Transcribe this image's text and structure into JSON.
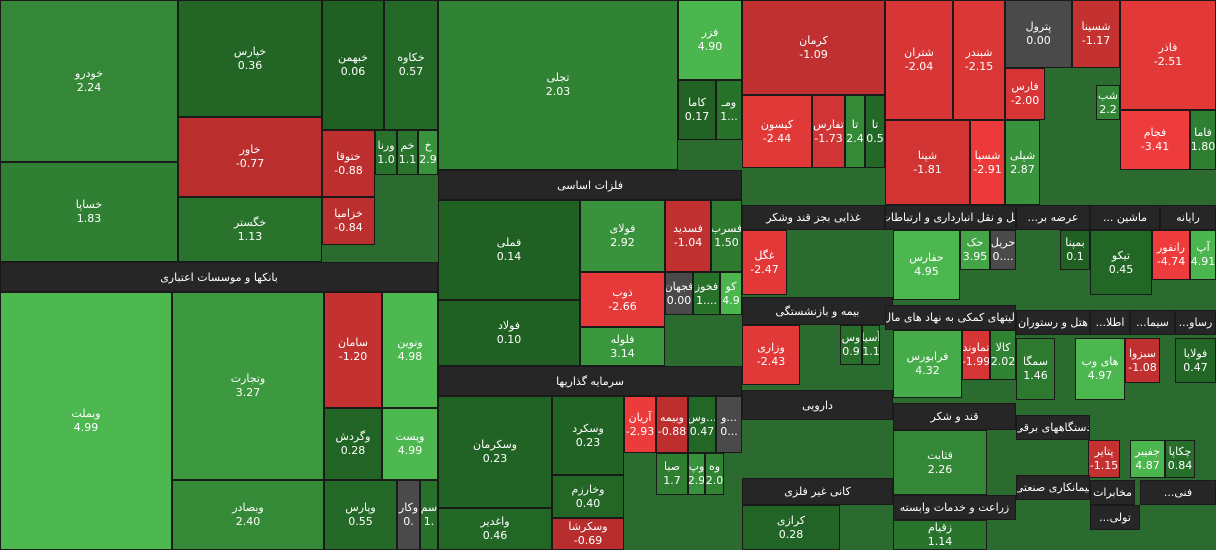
{
  "tiles": [
    {
      "name": "خودرو",
      "value": "2.24"
    },
    {
      "name": "خساپا",
      "value": "1.83"
    },
    {
      "name": "خپارس",
      "value": "0.36"
    },
    {
      "name": "خاور",
      "value": "-0.77"
    },
    {
      "name": "خگستر",
      "value": "1.13"
    },
    {
      "name": "خبهمن",
      "value": "0.06"
    },
    {
      "name": "خکاوه",
      "value": "0.57"
    },
    {
      "name": "ختوقا",
      "value": "-0.88"
    },
    {
      "name": "خزامیا",
      "value": "-0.84"
    },
    {
      "name": "ورنا",
      "value": "1.0"
    },
    {
      "name": "خم",
      "value": "1.1"
    },
    {
      "name": "خ",
      "value": "2.9"
    },
    {
      "name": "وبملت",
      "value": "4.99"
    },
    {
      "name": "وتجارت",
      "value": "3.27"
    },
    {
      "name": "وبصادر",
      "value": "2.40"
    },
    {
      "name": "سامان",
      "value": "-1.20"
    },
    {
      "name": "ونوین",
      "value": "4.98"
    },
    {
      "name": "وگردش",
      "value": "0.28"
    },
    {
      "name": "وپست",
      "value": "4.99"
    },
    {
      "name": "وپارس",
      "value": "0.55"
    },
    {
      "name": "وکار",
      "value": "0."
    },
    {
      "name": "سم",
      "value": "1."
    },
    {
      "name": "تجلی",
      "value": "2.03"
    },
    {
      "name": "فزر",
      "value": "4.90"
    },
    {
      "name": "کاما",
      "value": "0.17"
    },
    {
      "name": "ومـ",
      "value": "1..."
    },
    {
      "name": "فملی",
      "value": "0.14"
    },
    {
      "name": "فولاد",
      "value": "0.10"
    },
    {
      "name": "فولای",
      "value": "2.92"
    },
    {
      "name": "فسدید",
      "value": "-1.04"
    },
    {
      "name": "فسرب",
      "value": "1.50"
    },
    {
      "name": "ذوب",
      "value": "-2.66"
    },
    {
      "name": "فلوله",
      "value": "3.14"
    },
    {
      "name": "فجهان",
      "value": "0.00"
    },
    {
      "name": "فخوز",
      "value": "1...."
    },
    {
      "name": "کو",
      "value": "4.9"
    },
    {
      "name": "وسکرمان",
      "value": "0.23"
    },
    {
      "name": "واغدیر",
      "value": "0.46"
    },
    {
      "name": "وسکرد",
      "value": "0.23"
    },
    {
      "name": "وخارزم",
      "value": "0.40"
    },
    {
      "name": "وسکرشا",
      "value": "-0.69"
    },
    {
      "name": "آریان",
      "value": "-2.93"
    },
    {
      "name": "وبیمه",
      "value": "-0.88"
    },
    {
      "name": "وس...",
      "value": "0.47"
    },
    {
      "name": "و...",
      "value": "0..."
    },
    {
      "name": "صبا",
      "value": "1.7"
    },
    {
      "name": "وپ",
      "value": "2.9"
    },
    {
      "name": "وه",
      "value": "2.0"
    },
    {
      "name": "کرمان",
      "value": "-1.09"
    },
    {
      "name": "کیسون",
      "value": "-2.44"
    },
    {
      "name": "تفارس",
      "value": "-1.73"
    },
    {
      "name": "تا",
      "value": "2.4"
    },
    {
      "name": "تا",
      "value": "0.5"
    },
    {
      "name": "شتران",
      "value": "-2.04"
    },
    {
      "name": "شبندر",
      "value": "-2.15"
    },
    {
      "name": "شپنا",
      "value": "-1.81"
    },
    {
      "name": "شسپا",
      "value": "-2.91"
    },
    {
      "name": "پترول",
      "value": "0.00"
    },
    {
      "name": "شسینا",
      "value": "-1.17"
    },
    {
      "name": "فارس",
      "value": "-2.00"
    },
    {
      "name": "شپلی",
      "value": "2.87"
    },
    {
      "name": "شب",
      "value": "2.2"
    },
    {
      "name": "فاذر",
      "value": "-2.51"
    },
    {
      "name": "فجام",
      "value": "-3.41"
    },
    {
      "name": "فاما",
      "value": "1.80"
    },
    {
      "name": "غگل",
      "value": "-2.47"
    },
    {
      "name": "حفارس",
      "value": "4.95"
    },
    {
      "name": "حک",
      "value": "3.95"
    },
    {
      "name": "حریل",
      "value": "0...."
    },
    {
      "name": "بمپنا",
      "value": "0.1"
    },
    {
      "name": "تیکو",
      "value": "0.45"
    },
    {
      "name": "رانفور",
      "value": "-4.74"
    },
    {
      "name": "آپ",
      "value": "4.91"
    },
    {
      "name": "وزاری",
      "value": "-2.43"
    },
    {
      "name": "وس",
      "value": "0.9"
    },
    {
      "name": "آسیا",
      "value": "1.1"
    },
    {
      "name": "فرابورس",
      "value": "4.32"
    },
    {
      "name": "تماوند",
      "value": "-1.99"
    },
    {
      "name": "کالا",
      "value": "2.02"
    },
    {
      "name": "سمگا",
      "value": "1.46"
    },
    {
      "name": "های وب",
      "value": "4.97"
    },
    {
      "name": "سبزوا",
      "value": "-1.08"
    },
    {
      "name": "فولایا",
      "value": "0.47"
    },
    {
      "name": "قثابت",
      "value": "2.26"
    },
    {
      "name": "پتایر",
      "value": "-1.15"
    },
    {
      "name": "جفیبر",
      "value": "4.87"
    },
    {
      "name": "چکاپا",
      "value": "0.84"
    },
    {
      "name": "کرازی",
      "value": "0.28"
    },
    {
      "name": "زقیام",
      "value": "1.14"
    }
  ],
  "banners": [
    "بانکها و موسسات اعتباری",
    "فلزات اساسی",
    "سرمایه گذاریها",
    "غذایی بجز قند وشکر",
    "مل و نقل انبارداری و ارتباطات",
    "عرضه بر...",
    "ماشین ...",
    "رایانه",
    "بیمه و بازنشستگی",
    "الیتهای کمکی به نهاد های مال",
    "هتل و رستوران",
    "اطلا...",
    "سیما...",
    "رساو...",
    "دارویی",
    "قند و شکر",
    "دستگاههای برقی",
    "کانی غیر فلزی",
    "زراعت و خدمات وابسته",
    "پیمانکاری صنعتی",
    "مخابرات",
    "فنی...",
    "تولی..."
  ]
}
